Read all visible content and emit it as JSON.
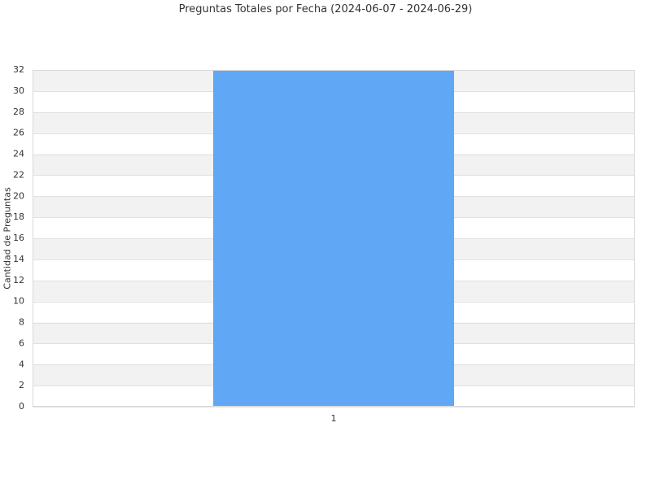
{
  "chart_data": {
    "type": "bar",
    "title": "Preguntas Totales por Fecha (2024-06-07 - 2024-06-29)",
    "xlabel": "",
    "ylabel": "Cantidad de Preguntas",
    "categories": [
      "1"
    ],
    "series": [
      {
        "values": [
          32
        ],
        "color": "#60a8f6"
      }
    ],
    "ylim": [
      0,
      32
    ],
    "yticks": [
      0,
      2,
      4,
      6,
      8,
      10,
      12,
      14,
      16,
      18,
      20,
      22,
      24,
      26,
      28,
      30,
      32
    ],
    "grid": true,
    "band_colors": [
      "#f2f2f2",
      "#ffffff"
    ],
    "gridline_color": "#e0e0e0",
    "border_color": "#d9d9d9"
  }
}
